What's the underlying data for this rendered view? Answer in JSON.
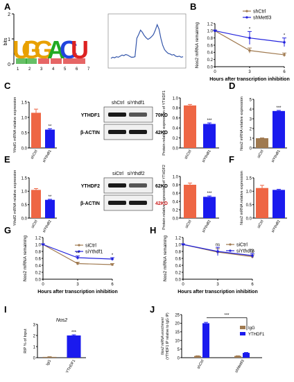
{
  "colors": {
    "ctrl": "#ee6644",
    "kd": "#1a1aee",
    "brown": "#a07a50",
    "blue": "#2222dd",
    "line": "#000000"
  },
  "panel_letters": [
    "A",
    "B",
    "C",
    "D",
    "E",
    "F",
    "G",
    "H",
    "I",
    "J"
  ],
  "motif": {
    "letters": [
      "U",
      "G",
      "G",
      "A",
      "C",
      "U"
    ],
    "axis_label": "bits",
    "ticks": [
      "0",
      "1",
      "2"
    ],
    "positions": [
      "1",
      "2",
      "3",
      "4",
      "5",
      "6",
      "7"
    ]
  },
  "blots": {
    "c": {
      "lanes": [
        "shCtrl",
        "siYthdf1"
      ],
      "rows": [
        {
          "name": "YTHDF1",
          "size": "70KD"
        },
        {
          "name": "β-ACTIN",
          "size": "42KD"
        }
      ]
    },
    "e": {
      "lanes": [
        "siCtrl",
        "siYthdf2"
      ],
      "rows": [
        {
          "name": "YTHDF2",
          "size": "62KD"
        },
        {
          "name": "β-ACTIN",
          "size": "42KD"
        }
      ]
    }
  },
  "chart_data": [
    {
      "id": "A_peak",
      "type": "line",
      "title": "",
      "x": [
        0,
        1,
        2,
        3,
        4,
        5,
        6,
        7,
        8,
        9,
        10,
        11,
        12,
        13,
        14,
        15,
        16,
        17,
        18,
        19,
        20,
        21,
        22,
        23,
        24,
        25,
        26,
        27,
        28,
        29,
        30,
        31,
        32,
        33,
        34,
        35,
        36,
        37,
        38,
        39
      ],
      "values": [
        0.18,
        0.2,
        0.19,
        0.21,
        0.2,
        0.22,
        0.24,
        0.23,
        0.25,
        0.24,
        0.22,
        0.2,
        0.2,
        0.21,
        0.55,
        0.62,
        0.7,
        0.66,
        0.6,
        0.56,
        0.53,
        0.55,
        0.58,
        0.62,
        0.7,
        0.8,
        0.72,
        0.55,
        0.42,
        0.34,
        0.3,
        0.27,
        0.26,
        0.24,
        0.25,
        0.22,
        0.21,
        0.22,
        0.2,
        0.21
      ],
      "ylim": [
        0,
        1
      ]
    },
    {
      "id": "B",
      "type": "line",
      "xlabel": "Hours after transcription inhibition",
      "ylabel": "Nos2 mRNA remaining",
      "x": [
        0,
        3,
        6
      ],
      "x_ticks": [
        "0",
        "3",
        "6"
      ],
      "y_ticks": [
        "0.0",
        "0.2",
        "0.4",
        "0.6",
        "0.8",
        "1.0",
        "1.2"
      ],
      "ylim": [
        0,
        1.2
      ],
      "series": [
        {
          "name": "shCtrl",
          "values": [
            1,
            0.45,
            0.33
          ],
          "errors": [
            0.02,
            0.07,
            0.05
          ],
          "color": "brown"
        },
        {
          "name": "shMettl3",
          "values": [
            1,
            0.8,
            0.68
          ],
          "errors": [
            0.02,
            0.18,
            0.12
          ],
          "color": "blue"
        }
      ],
      "annotations": [
        "*",
        "*"
      ]
    },
    {
      "id": "C1",
      "type": "bar",
      "ylabel": "Ythdf1 mRNA relative expression",
      "categories": [
        "shCtrl",
        "siYthdf1"
      ],
      "values": [
        1.15,
        0.6
      ],
      "errors": [
        0.12,
        0.03
      ],
      "y_ticks": [
        "0.0",
        "0.5",
        "1.0",
        "1.5"
      ],
      "ylim": [
        0,
        1.5
      ],
      "annotations": [
        "",
        "**"
      ]
    },
    {
      "id": "C2",
      "type": "bar",
      "ylabel": "Protein relative expression of YTHDF1",
      "categories": [
        "shCtrl",
        "siYthdf1"
      ],
      "values": [
        0.85,
        0.48
      ],
      "errors": [
        0.02,
        0.02
      ],
      "y_ticks": [
        "0.0",
        "0.2",
        "0.4",
        "0.6",
        "0.8",
        "1.0"
      ],
      "ylim": [
        0,
        1.0
      ],
      "annotations": [
        "",
        "***"
      ]
    },
    {
      "id": "D",
      "type": "bar",
      "ylabel": "Nos2 mRNA relative expression",
      "categories": [
        "siCtrl",
        "siYthdf1"
      ],
      "values": [
        1.0,
        3.8
      ],
      "errors": [
        0.03,
        0.06
      ],
      "y_ticks": [
        "0",
        "1",
        "2",
        "3",
        "4",
        "5"
      ],
      "ylim": [
        0,
        5
      ],
      "annotations": [
        "",
        "***"
      ]
    },
    {
      "id": "E1",
      "type": "bar",
      "ylabel": "Ythdf2 mRNA relative expression",
      "categories": [
        "siCtrl",
        "siYthdf2"
      ],
      "values": [
        1.05,
        0.68
      ],
      "errors": [
        0.05,
        0.02
      ],
      "y_ticks": [
        "0.0",
        "0.5",
        "1.0",
        "1.5"
      ],
      "ylim": [
        0,
        1.5
      ],
      "annotations": [
        "",
        "**"
      ]
    },
    {
      "id": "E2",
      "type": "bar",
      "ylabel": "Protein relative expression of YTHDF2",
      "categories": [
        "siCtrl",
        "siYthdf2"
      ],
      "values": [
        0.8,
        0.51
      ],
      "errors": [
        0.04,
        0.02
      ],
      "y_ticks": [
        "0.0",
        "0.2",
        "0.4",
        "0.6",
        "0.8",
        "1.0"
      ],
      "ylim": [
        0,
        1.0
      ],
      "annotations": [
        "",
        "***"
      ]
    },
    {
      "id": "F",
      "type": "bar",
      "ylabel": "Nos2 mRNA relative expression",
      "categories": [
        "siCtrl",
        "siYthdf2"
      ],
      "values": [
        1.12,
        1.05
      ],
      "errors": [
        0.1,
        0.02
      ],
      "y_ticks": [
        "0.0",
        "0.5",
        "1.0",
        "1.5"
      ],
      "ylim": [
        0,
        1.5
      ],
      "annotations": [
        "",
        ""
      ]
    },
    {
      "id": "G",
      "type": "line",
      "xlabel": "Hours after transcription inhibition",
      "ylabel": "Nos2 mRNA remaining",
      "x": [
        0,
        3,
        6
      ],
      "x_ticks": [
        "0",
        "3",
        "6"
      ],
      "y_ticks": [
        "0.0",
        "0.2",
        "0.4",
        "0.6",
        "0.8",
        "1.0",
        "1.2"
      ],
      "ylim": [
        0,
        1.2
      ],
      "series": [
        {
          "name": "siCtrl",
          "values": [
            1,
            0.45,
            0.42
          ],
          "errors": [
            0.02,
            0.04,
            0.03
          ],
          "color": "brown"
        },
        {
          "name": "siYthdf1",
          "values": [
            1,
            0.62,
            0.58
          ],
          "errors": [
            0.02,
            0.05,
            0.04
          ],
          "color": "blue"
        }
      ],
      "annotations": [
        "**",
        "*"
      ]
    },
    {
      "id": "H",
      "type": "line",
      "xlabel": "Hours after transcription inhibition",
      "ylabel": "Nos2 mRNA remaining",
      "x": [
        0,
        3,
        6
      ],
      "x_ticks": [
        "0",
        "3",
        "6"
      ],
      "y_ticks": [
        "0.0",
        "0.2",
        "0.4",
        "0.6",
        "0.8",
        "1.0",
        "1.2"
      ],
      "ylim": [
        0,
        1.2
      ],
      "series": [
        {
          "name": "siCtrl",
          "values": [
            1,
            0.78,
            0.65
          ],
          "errors": [
            0.02,
            0.1,
            0.05
          ],
          "color": "brown"
        },
        {
          "name": "siYthdf2",
          "values": [
            1,
            0.8,
            0.68
          ],
          "errors": [
            0.02,
            0.12,
            0.06
          ],
          "color": "blue"
        }
      ],
      "annotations": [
        "ns",
        "ns"
      ]
    },
    {
      "id": "I",
      "type": "bar",
      "title": "Nos2",
      "ylabel": "RIP % of Input",
      "categories": [
        "IgG",
        "YTHDF1"
      ],
      "values": [
        0.07,
        2.0
      ],
      "errors": [
        0.02,
        0.06
      ],
      "y_ticks": [
        "0",
        "1",
        "2",
        "3"
      ],
      "ylim": [
        0,
        3
      ],
      "annotations": [
        "",
        "***"
      ]
    },
    {
      "id": "J",
      "type": "bar",
      "ylabel": "Nos2 mRNA enrichment (YTHDF1 IP relative to IgG IP)",
      "categories": [
        "shCtrl",
        "shMettl3"
      ],
      "series": [
        {
          "name": "IgG",
          "values": [
            1.0,
            1.0
          ],
          "errors": [
            0.1,
            0.1
          ],
          "color": "brown"
        },
        {
          "name": "YTHDF1",
          "values": [
            20.0,
            2.8
          ],
          "errors": [
            0.5,
            0.2
          ],
          "color": "blue"
        }
      ],
      "y_ticks": [
        "0",
        "5",
        "10",
        "15",
        "20",
        "25"
      ],
      "ylim": [
        0,
        25
      ],
      "annotations": [
        "***"
      ]
    }
  ]
}
